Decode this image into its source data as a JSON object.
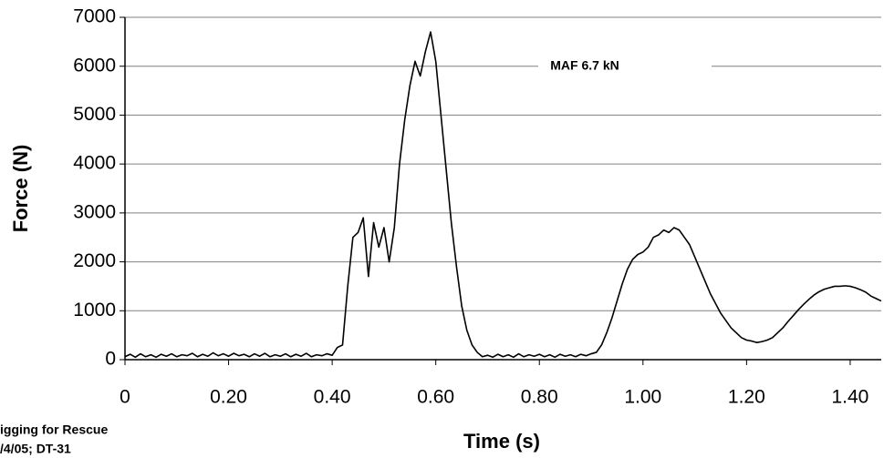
{
  "chart_data": {
    "type": "line",
    "x_label": "Time (s)",
    "y_label": "Force (N)",
    "annotation": "MAF 6.7 kN",
    "notes": [
      "igging for Rescue",
      "/4/05; DT-31"
    ],
    "color": "#000000",
    "grid": true,
    "xlim": [
      0,
      1.46
    ],
    "ylim": [
      0,
      7000
    ],
    "xticks": [
      0,
      {
        "value": 0.2,
        "label": "0.20"
      },
      {
        "value": 0.4,
        "label": "0.40"
      },
      {
        "value": 0.6,
        "label": "0.60"
      },
      {
        "value": 0.8,
        "label": "0.80"
      },
      {
        "value": 1.0,
        "label": "1.00"
      },
      {
        "value": 1.2,
        "label": "1.20"
      },
      {
        "value": 1.4,
        "label": "1.40"
      }
    ],
    "yticks": [
      0,
      1000,
      2000,
      3000,
      4000,
      5000,
      6000,
      7000
    ],
    "x": [
      0,
      0.01,
      0.02,
      0.03,
      0.04,
      0.05,
      0.06,
      0.07,
      0.08,
      0.09,
      0.1,
      0.11,
      0.12,
      0.13,
      0.14,
      0.15,
      0.16,
      0.17,
      0.18,
      0.19,
      0.2,
      0.21,
      0.22,
      0.23,
      0.24,
      0.25,
      0.26,
      0.27,
      0.28,
      0.29,
      0.3,
      0.31,
      0.32,
      0.33,
      0.34,
      0.35,
      0.36,
      0.37,
      0.38,
      0.39,
      0.4,
      0.41,
      0.42,
      0.43,
      0.44,
      0.45,
      0.46,
      0.47,
      0.48,
      0.49,
      0.5,
      0.51,
      0.52,
      0.53,
      0.54,
      0.55,
      0.56,
      0.57,
      0.58,
      0.59,
      0.6,
      0.61,
      0.62,
      0.63,
      0.64,
      0.65,
      0.66,
      0.67,
      0.68,
      0.69,
      0.7,
      0.71,
      0.72,
      0.73,
      0.74,
      0.75,
      0.76,
      0.77,
      0.78,
      0.79,
      0.8,
      0.81,
      0.82,
      0.83,
      0.84,
      0.85,
      0.86,
      0.87,
      0.88,
      0.89,
      0.9,
      0.91,
      0.92,
      0.93,
      0.94,
      0.95,
      0.96,
      0.97,
      0.98,
      0.99,
      1.0,
      1.01,
      1.02,
      1.03,
      1.04,
      1.05,
      1.06,
      1.07,
      1.08,
      1.09,
      1.1,
      1.11,
      1.12,
      1.13,
      1.14,
      1.15,
      1.16,
      1.17,
      1.18,
      1.19,
      1.2,
      1.21,
      1.22,
      1.23,
      1.24,
      1.25,
      1.26,
      1.27,
      1.28,
      1.29,
      1.3,
      1.31,
      1.32,
      1.33,
      1.34,
      1.35,
      1.36,
      1.37,
      1.38,
      1.39,
      1.4,
      1.41,
      1.42,
      1.43,
      1.44,
      1.45,
      1.46
    ],
    "values": [
      60,
      110,
      50,
      120,
      60,
      100,
      50,
      110,
      70,
      120,
      60,
      100,
      80,
      130,
      60,
      110,
      70,
      140,
      80,
      120,
      70,
      130,
      80,
      110,
      60,
      120,
      70,
      130,
      60,
      100,
      70,
      120,
      60,
      110,
      70,
      130,
      60,
      100,
      80,
      120,
      90,
      250,
      300,
      1500,
      2500,
      2600,
      2900,
      1700,
      2800,
      2300,
      2700,
      2000,
      2700,
      4000,
      4900,
      5600,
      6100,
      5800,
      6300,
      6700,
      6100,
      5000,
      3900,
      2800,
      1900,
      1100,
      600,
      300,
      150,
      60,
      90,
      50,
      110,
      60,
      100,
      50,
      120,
      60,
      100,
      70,
      110,
      60,
      100,
      50,
      110,
      70,
      100,
      60,
      110,
      80,
      120,
      150,
      300,
      550,
      850,
      1200,
      1550,
      1850,
      2050,
      2150,
      2200,
      2300,
      2500,
      2550,
      2650,
      2600,
      2700,
      2650,
      2500,
      2350,
      2100,
      1850,
      1600,
      1350,
      1150,
      950,
      800,
      650,
      550,
      450,
      400,
      380,
      350,
      370,
      400,
      450,
      550,
      650,
      780,
      900,
      1020,
      1130,
      1230,
      1320,
      1390,
      1440,
      1470,
      1500,
      1500,
      1510,
      1500,
      1470,
      1430,
      1380,
      1300,
      1250,
      1200
    ]
  }
}
